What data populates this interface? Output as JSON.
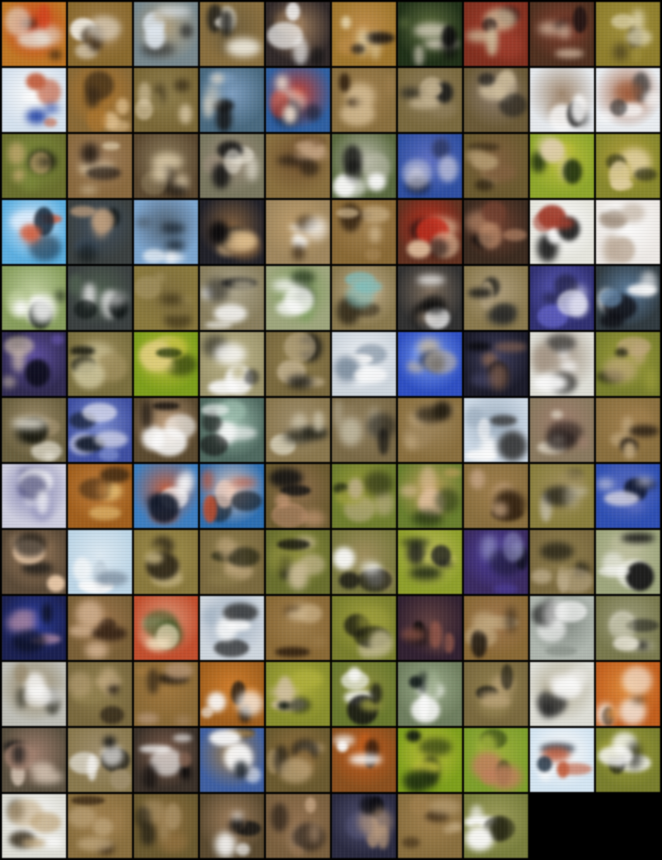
{
  "grid": {
    "columns": 10,
    "tiles": [
      {
        "bg": "#c07828",
        "a": "#e8e8e0",
        "b": "#2a1a10",
        "c": "#d04020"
      },
      {
        "bg": "#8a6a30",
        "a": "#f4f0e8",
        "b": "#3a2a18",
        "c": "#a08050"
      },
      {
        "bg": "#7a8a90",
        "a": "#e0e8f0",
        "b": "#1a1a1a",
        "c": "#b0a080"
      },
      {
        "bg": "#8a7040",
        "a": "#f0ece0",
        "b": "#1a1a18",
        "c": "#706040"
      },
      {
        "bg": "#302828",
        "a": "#f8f8f8",
        "b": "#101010",
        "c": "#a08060"
      },
      {
        "bg": "#a07830",
        "a": "#e8d8b0",
        "b": "#1a1410",
        "c": "#c09050"
      },
      {
        "bg": "#203018",
        "a": "#d8d0c0",
        "b": "#0a0a0a",
        "c": "#607040"
      },
      {
        "bg": "#803020",
        "a": "#d0c0a0",
        "b": "#1a1010",
        "c": "#a04030"
      },
      {
        "bg": "#503020",
        "a": "#e0c8b0",
        "b": "#1a1010",
        "c": "#804030"
      },
      {
        "bg": "#908030",
        "a": "#e8e0c0",
        "b": "#302818",
        "c": "#a09040"
      },
      {
        "bg": "#d8e4f0",
        "a": "#c06040",
        "b": "#2040a0",
        "c": "#ffffff"
      },
      {
        "bg": "#8a6a38",
        "a": "#e0c090",
        "b": "#3a2a18",
        "c": "#b07830"
      },
      {
        "bg": "#7a6838",
        "a": "#e0d0b0",
        "b": "#2a2010",
        "c": "#908050"
      },
      {
        "bg": "#4a6a80",
        "a": "#e0d8c8",
        "b": "#101010",
        "c": "#80a0c0"
      },
      {
        "bg": "#3060a0",
        "a": "#f0e0d0",
        "b": "#101828",
        "c": "#c04030"
      },
      {
        "bg": "#8a7040",
        "a": "#d0b890",
        "b": "#302010",
        "c": "#a08050"
      },
      {
        "bg": "#7a6a40",
        "a": "#c0b090",
        "b": "#1a1a18",
        "c": "#908060"
      },
      {
        "bg": "#6a5a38",
        "a": "#d0c0a0",
        "b": "#1a1818",
        "c": "#908070"
      },
      {
        "bg": "#e8ecf0",
        "a": "#ffffff",
        "b": "#202020",
        "c": "#a08870"
      },
      {
        "bg": "#ecf0f4",
        "a": "#ffffff",
        "b": "#303030",
        "c": "#a06040"
      },
      {
        "bg": "#6a7030",
        "a": "#c0a870",
        "b": "#1a1a10",
        "c": "#809040"
      },
      {
        "bg": "#8a6a40",
        "a": "#e0d0b0",
        "b": "#2a2018",
        "c": "#a08060"
      },
      {
        "bg": "#5a4830",
        "a": "#e8d8b8",
        "b": "#1a1410",
        "c": "#908060"
      },
      {
        "bg": "#7a7860",
        "a": "#f0ece0",
        "b": "#101010",
        "c": "#a09080"
      },
      {
        "bg": "#8a7040",
        "a": "#c0a080",
        "b": "#201810",
        "c": "#705030"
      },
      {
        "bg": "#5a6a40",
        "a": "#ffffff",
        "b": "#101010",
        "c": "#c0c0b0"
      },
      {
        "bg": "#3050a0",
        "a": "#d0d0e0",
        "b": "#101830",
        "c": "#6070c0"
      },
      {
        "bg": "#6a5a30",
        "a": "#b09870",
        "b": "#2a2010",
        "c": "#806040"
      },
      {
        "bg": "#90a830",
        "a": "#e0d0b0",
        "b": "#203010",
        "c": "#c0c040"
      },
      {
        "bg": "#8a8a30",
        "a": "#e0d0a0",
        "b": "#303018",
        "c": "#b0a040"
      },
      {
        "bg": "#60b0e0",
        "a": "#d06040",
        "b": "#102030",
        "c": "#e0f0ff"
      },
      {
        "bg": "#3a4040",
        "a": "#c0a080",
        "b": "#0a1010",
        "c": "#405060"
      },
      {
        "bg": "#80a8d0",
        "a": "#ffffff",
        "b": "#101820",
        "c": "#506070"
      },
      {
        "bg": "#202028",
        "a": "#e0c090",
        "b": "#050508",
        "c": "#806040"
      },
      {
        "bg": "#a08860",
        "a": "#ffffff",
        "b": "#3a2a18",
        "c": "#c0a070"
      },
      {
        "bg": "#8a6a38",
        "a": "#d0b890",
        "b": "#302010",
        "c": "#a08050"
      },
      {
        "bg": "#603020",
        "a": "#e0c0a0",
        "b": "#1a1010",
        "c": "#c03020"
      },
      {
        "bg": "#3a2a20",
        "a": "#c09070",
        "b": "#0a0808",
        "c": "#704030"
      },
      {
        "bg": "#e8e8e0",
        "a": "#a04030",
        "b": "#1a1a1a",
        "c": "#ffffff"
      },
      {
        "bg": "#f0ece8",
        "a": "#c0b0a0",
        "b": "#a09080",
        "c": "#ffffff"
      },
      {
        "bg": "#8aa060",
        "a": "#ffffff",
        "b": "#101810",
        "c": "#c0d0a0"
      },
      {
        "bg": "#3a4040",
        "a": "#e0e0e0",
        "b": "#0a1010",
        "c": "#506050"
      },
      {
        "bg": "#8a7a40",
        "a": "#a09060",
        "b": "#3a3018",
        "c": "#807040"
      },
      {
        "bg": "#8a8060",
        "a": "#ffffff",
        "b": "#202020",
        "c": "#b0a890"
      },
      {
        "bg": "#a0a880",
        "a": "#ffffff",
        "b": "#203018",
        "c": "#80a060"
      },
      {
        "bg": "#8a7a50",
        "a": "#80c0c0",
        "b": "#302818",
        "c": "#c0b090"
      },
      {
        "bg": "#303030",
        "a": "#ffffff",
        "b": "#0a0a0a",
        "c": "#807060"
      },
      {
        "bg": "#8a7a50",
        "a": "#2a2a28",
        "b": "#101010",
        "c": "#b0a080"
      },
      {
        "bg": "#303070",
        "a": "#e0e0f0",
        "b": "#101020",
        "c": "#6060c0"
      },
      {
        "bg": "#303a40",
        "a": "#ffffff",
        "b": "#0a0a10",
        "c": "#6080a0"
      },
      {
        "bg": "#302a50",
        "a": "#d0c0b0",
        "b": "#0a0a18",
        "c": "#6050a0"
      },
      {
        "bg": "#7a7040",
        "a": "#d0c8a0",
        "b": "#1a1a10",
        "c": "#a09060"
      },
      {
        "bg": "#80a020",
        "a": "#e0d080",
        "b": "#304010",
        "c": "#c0c040"
      },
      {
        "bg": "#a09870",
        "a": "#ffffff",
        "b": "#1a1a18",
        "c": "#c0b890"
      },
      {
        "bg": "#7a6a40",
        "a": "#c0b090",
        "b": "#101010",
        "c": "#908050"
      },
      {
        "bg": "#d0d8e0",
        "a": "#ffffff",
        "b": "#8090a0",
        "c": "#f0f4f8"
      },
      {
        "bg": "#3050c0",
        "a": "#d0c0a0",
        "b": "#101830",
        "c": "#80a0f0"
      },
      {
        "bg": "#1a1a28",
        "a": "#806050",
        "b": "#050508",
        "c": "#404060"
      },
      {
        "bg": "#e0e0d8",
        "a": "#ffffff",
        "b": "#101010",
        "c": "#a09080"
      },
      {
        "bg": "#7a8030",
        "a": "#c0a880",
        "b": "#202010",
        "c": "#a0a040"
      },
      {
        "bg": "#6a6040",
        "a": "#f0ece0",
        "b": "#1a1a10",
        "c": "#a09070"
      },
      {
        "bg": "#4050a0",
        "a": "#f0f0f8",
        "b": "#101828",
        "c": "#8090d0"
      },
      {
        "bg": "#5a4a30",
        "a": "#ffffff",
        "b": "#1a1410",
        "c": "#c0a080"
      },
      {
        "bg": "#506a60",
        "a": "#ffffff",
        "b": "#101010",
        "c": "#a0c0b0"
      },
      {
        "bg": "#8a7850",
        "a": "#d0c8b0",
        "b": "#202018",
        "c": "#a09070"
      },
      {
        "bg": "#7a6a48",
        "a": "#c0b8a0",
        "b": "#101010",
        "c": "#908060"
      },
      {
        "bg": "#8a7040",
        "a": "#c0a880",
        "b": "#201a10",
        "c": "#a08860"
      },
      {
        "bg": "#d0dce8",
        "a": "#ffffff",
        "b": "#303030",
        "c": "#a0b0c0"
      },
      {
        "bg": "#8a7a60",
        "a": "#e0d8c8",
        "b": "#201818",
        "c": "#a08070"
      },
      {
        "bg": "#8a7040",
        "a": "#c0a880",
        "b": "#201810",
        "c": "#a08050"
      },
      {
        "bg": "#d0d0e0",
        "a": "#ffffff",
        "b": "#303060",
        "c": "#8080b0"
      },
      {
        "bg": "#a06020",
        "a": "#e0b870",
        "b": "#302010",
        "c": "#c08040"
      },
      {
        "bg": "#4080c0",
        "a": "#ffffff",
        "b": "#101828",
        "c": "#c06040"
      },
      {
        "bg": "#3070b0",
        "a": "#c05030",
        "b": "#101820",
        "c": "#f0d0c0"
      },
      {
        "bg": "#6a5a30",
        "a": "#d0a080",
        "b": "#101010",
        "c": "#907050"
      },
      {
        "bg": "#708030",
        "a": "#c0b090",
        "b": "#1a2010",
        "c": "#a0a040"
      },
      {
        "bg": "#6a8030",
        "a": "#e0c0a0",
        "b": "#203010",
        "c": "#c0a060"
      },
      {
        "bg": "#8a7040",
        "a": "#c0a080",
        "b": "#302010",
        "c": "#a08050"
      },
      {
        "bg": "#8a8040",
        "a": "#c0b8a0",
        "b": "#101010",
        "c": "#a09060"
      },
      {
        "bg": "#3050b0",
        "a": "#d0d0e0",
        "b": "#101830",
        "c": "#6070c0"
      },
      {
        "bg": "#5a4a38",
        "a": "#f0d0b0",
        "b": "#101010",
        "c": "#a08060"
      },
      {
        "bg": "#c0d8e8",
        "a": "#ffffff",
        "b": "#8090a0",
        "c": "#e0ecf4"
      },
      {
        "bg": "#8a7a40",
        "a": "#c0b080",
        "b": "#302818",
        "c": "#a09050"
      },
      {
        "bg": "#7a6a40",
        "a": "#c0a880",
        "b": "#202010",
        "c": "#908050"
      },
      {
        "bg": "#6a7030",
        "a": "#d0c0a0",
        "b": "#1a1a10",
        "c": "#909040"
      },
      {
        "bg": "#7a7a40",
        "a": "#ffffff",
        "b": "#101010",
        "c": "#a09060"
      },
      {
        "bg": "#90a030",
        "a": "#202020",
        "b": "#101810",
        "c": "#c0c060"
      },
      {
        "bg": "#3a2a60",
        "a": "#9090c0",
        "b": "#101020",
        "c": "#5040a0"
      },
      {
        "bg": "#7a6a40",
        "a": "#c0b090",
        "b": "#1a1810",
        "c": "#908050"
      },
      {
        "bg": "#a0a880",
        "a": "#ffffff",
        "b": "#101010",
        "c": "#c0c0a0"
      },
      {
        "bg": "#1a2050",
        "a": "#a080a0",
        "b": "#050810",
        "c": "#3040a0"
      },
      {
        "bg": "#7a6038",
        "a": "#d0b090",
        "b": "#2a1a10",
        "c": "#a07850"
      },
      {
        "bg": "#c05030",
        "a": "#f0e0c0",
        "b": "#305020",
        "c": "#e0a080"
      },
      {
        "bg": "#d0d8e0",
        "a": "#ffffff",
        "b": "#202020",
        "c": "#a0b0c0"
      },
      {
        "bg": "#8a6a38",
        "a": "#d0b890",
        "b": "#302010",
        "c": "#a08050"
      },
      {
        "bg": "#7a8030",
        "a": "#c0b890",
        "b": "#1a1a10",
        "c": "#a0a040"
      },
      {
        "bg": "#302030",
        "a": "#a06050",
        "b": "#0a0808",
        "c": "#604040"
      },
      {
        "bg": "#8a6a38",
        "a": "#c0a880",
        "b": "#201810",
        "c": "#a07850"
      },
      {
        "bg": "#b0b8b0",
        "a": "#ffffff",
        "b": "#202020",
        "c": "#808880"
      },
      {
        "bg": "#7a7a50",
        "a": "#f0ece0",
        "b": "#1a1a18",
        "c": "#a0a080"
      },
      {
        "bg": "#c0c0b8",
        "a": "#ffffff",
        "b": "#3a3a30",
        "c": "#908060"
      },
      {
        "bg": "#7a6a40",
        "a": "#c0a880",
        "b": "#201810",
        "c": "#908050"
      },
      {
        "bg": "#8a6a38",
        "a": "#b09070",
        "b": "#201810",
        "c": "#a07840"
      },
      {
        "bg": "#a06020",
        "a": "#ffffff",
        "b": "#101010",
        "c": "#d08030"
      },
      {
        "bg": "#8a9030",
        "a": "#d0c0a0",
        "b": "#101810",
        "c": "#b0b040"
      },
      {
        "bg": "#6a7a30",
        "a": "#ffffff",
        "b": "#101010",
        "c": "#909040"
      },
      {
        "bg": "#708060",
        "a": "#ffffff",
        "b": "#101818",
        "c": "#a0b090"
      },
      {
        "bg": "#7a6a40",
        "a": "#c0a880",
        "b": "#1a1810",
        "c": "#908050"
      },
      {
        "bg": "#e0e0d8",
        "a": "#ffffff",
        "b": "#202020",
        "c": "#b0a890"
      },
      {
        "bg": "#c06020",
        "a": "#ffffff",
        "b": "#302010",
        "c": "#e09040"
      },
      {
        "bg": "#5a5040",
        "a": "#e0d0c0",
        "b": "#101010",
        "c": "#a08070"
      },
      {
        "bg": "#8a7a50",
        "a": "#ffffff",
        "b": "#101010",
        "c": "#a09070"
      },
      {
        "bg": "#3a3028",
        "a": "#ffffff",
        "b": "#0a0808",
        "c": "#806050"
      },
      {
        "bg": "#4060a0",
        "a": "#ffffff",
        "b": "#101820",
        "c": "#a08050"
      },
      {
        "bg": "#6a5a30",
        "a": "#c0a880",
        "b": "#101010",
        "c": "#907040"
      },
      {
        "bg": "#8a5020",
        "a": "#ffffff",
        "b": "#201008",
        "c": "#c06020"
      },
      {
        "bg": "#80a020",
        "a": "#203010",
        "b": "#101810",
        "c": "#c0c040"
      },
      {
        "bg": "#80a030",
        "a": "#c08060",
        "b": "#203010",
        "c": "#a0b040"
      },
      {
        "bg": "#d8e8f4",
        "a": "#c06040",
        "b": "#203040",
        "c": "#ffffff"
      },
      {
        "bg": "#7a8030",
        "a": "#ffffff",
        "b": "#101010",
        "c": "#a0a040"
      },
      {
        "bg": "#e0e0d8",
        "a": "#c0a880",
        "b": "#3a3020",
        "c": "#ffffff"
      },
      {
        "bg": "#8a7040",
        "a": "#c0a880",
        "b": "#302010",
        "c": "#a08050"
      },
      {
        "bg": "#6a5a30",
        "a": "#b09870",
        "b": "#1a1810",
        "c": "#907040"
      },
      {
        "bg": "#5a4a30",
        "a": "#ffffff",
        "b": "#101010",
        "c": "#a08060"
      },
      {
        "bg": "#7a6040",
        "a": "#c0a080",
        "b": "#1a1410",
        "c": "#907050"
      },
      {
        "bg": "#2a2a40",
        "a": "#c0a080",
        "b": "#0a0a10",
        "c": "#505070"
      },
      {
        "bg": "#8a7040",
        "a": "#c0a880",
        "b": "#302010",
        "c": "#a08050"
      },
      {
        "bg": "#7a8040",
        "a": "#ffffff",
        "b": "#202010",
        "c": "#a0a060"
      }
    ]
  }
}
